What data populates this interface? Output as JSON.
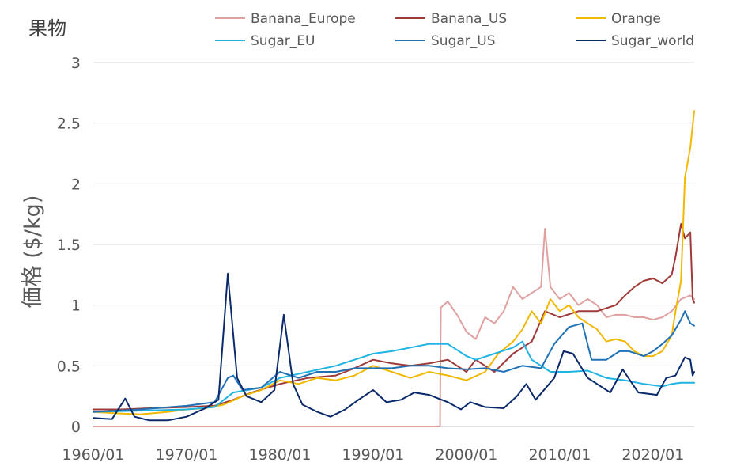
{
  "chart_data": {
    "type": "line",
    "title": "果物",
    "ylabel": "価格 ($/kg)",
    "xlabel": "",
    "ylim": [
      0,
      3
    ],
    "xlim": [
      "1960/01",
      "2024/06"
    ],
    "y_ticks": [
      "0",
      "0.5",
      "1",
      "1.5",
      "2",
      "2.5",
      "3"
    ],
    "x_ticks": [
      "1960/01",
      "1970/01",
      "1980/01",
      "1990/01",
      "2000/01",
      "2010/01",
      "2020/01"
    ],
    "grid": true,
    "legend_position": "top",
    "series": [
      {
        "name": "Banana_Europe",
        "color": "#E0A0A0",
        "points": [
          [
            "1960/01",
            0.0
          ],
          [
            "1997/03",
            0.0
          ],
          [
            "1997/04",
            0.98
          ],
          [
            "1998/01",
            1.03
          ],
          [
            "1999/01",
            0.92
          ],
          [
            "2000/01",
            0.78
          ],
          [
            "2001/01",
            0.72
          ],
          [
            "2002/01",
            0.9
          ],
          [
            "2003/01",
            0.85
          ],
          [
            "2004/01",
            0.95
          ],
          [
            "2005/01",
            1.15
          ],
          [
            "2006/01",
            1.05
          ],
          [
            "2007/01",
            1.1
          ],
          [
            "2008/01",
            1.15
          ],
          [
            "2008/06",
            1.63
          ],
          [
            "2009/01",
            1.15
          ],
          [
            "2010/01",
            1.05
          ],
          [
            "2011/01",
            1.1
          ],
          [
            "2012/01",
            1.0
          ],
          [
            "2013/01",
            1.05
          ],
          [
            "2014/01",
            1.0
          ],
          [
            "2015/01",
            0.9
          ],
          [
            "2016/01",
            0.92
          ],
          [
            "2017/01",
            0.92
          ],
          [
            "2018/01",
            0.9
          ],
          [
            "2019/01",
            0.9
          ],
          [
            "2020/01",
            0.88
          ],
          [
            "2021/01",
            0.9
          ],
          [
            "2022/01",
            0.95
          ],
          [
            "2023/01",
            1.05
          ],
          [
            "2024/01",
            1.08
          ],
          [
            "2024/06",
            1.05
          ]
        ]
      },
      {
        "name": "Banana_US",
        "color": "#9E3A38",
        "points": [
          [
            "1960/01",
            0.14
          ],
          [
            "1963/01",
            0.14
          ],
          [
            "1966/01",
            0.15
          ],
          [
            "1970/01",
            0.16
          ],
          [
            "1973/01",
            0.17
          ],
          [
            "1975/01",
            0.22
          ],
          [
            "1977/01",
            0.28
          ],
          [
            "1980/01",
            0.35
          ],
          [
            "1983/01",
            0.4
          ],
          [
            "1986/01",
            0.42
          ],
          [
            "1988/01",
            0.48
          ],
          [
            "1990/01",
            0.55
          ],
          [
            "1992/01",
            0.52
          ],
          [
            "1994/01",
            0.5
          ],
          [
            "1996/01",
            0.52
          ],
          [
            "1998/01",
            0.55
          ],
          [
            "2000/01",
            0.45
          ],
          [
            "2001/01",
            0.55
          ],
          [
            "2003/01",
            0.45
          ],
          [
            "2005/01",
            0.6
          ],
          [
            "2007/01",
            0.7
          ],
          [
            "2008/06",
            0.95
          ],
          [
            "2010/01",
            0.9
          ],
          [
            "2012/01",
            0.95
          ],
          [
            "2014/01",
            0.95
          ],
          [
            "2016/01",
            1.0
          ],
          [
            "2017/01",
            1.08
          ],
          [
            "2018/01",
            1.15
          ],
          [
            "2019/01",
            1.2
          ],
          [
            "2020/01",
            1.22
          ],
          [
            "2021/01",
            1.18
          ],
          [
            "2022/01",
            1.25
          ],
          [
            "2022/06",
            1.4
          ],
          [
            "2023/01",
            1.67
          ],
          [
            "2023/06",
            1.55
          ],
          [
            "2024/01",
            1.6
          ],
          [
            "2024/04",
            1.05
          ],
          [
            "2024/06",
            1.02
          ]
        ]
      },
      {
        "name": "Orange",
        "color": "#F2B800",
        "points": [
          [
            "1960/01",
            0.12
          ],
          [
            "1962/01",
            0.11
          ],
          [
            "1965/01",
            0.1
          ],
          [
            "1968/01",
            0.12
          ],
          [
            "1970/01",
            0.14
          ],
          [
            "1972/01",
            0.15
          ],
          [
            "1974/01",
            0.18
          ],
          [
            "1976/01",
            0.25
          ],
          [
            "1978/01",
            0.3
          ],
          [
            "1980/01",
            0.38
          ],
          [
            "1982/01",
            0.35
          ],
          [
            "1984/01",
            0.4
          ],
          [
            "1986/01",
            0.38
          ],
          [
            "1988/01",
            0.42
          ],
          [
            "1990/01",
            0.5
          ],
          [
            "1992/01",
            0.45
          ],
          [
            "1994/01",
            0.4
          ],
          [
            "1996/01",
            0.45
          ],
          [
            "1998/01",
            0.42
          ],
          [
            "2000/01",
            0.38
          ],
          [
            "2002/01",
            0.45
          ],
          [
            "2003/06",
            0.6
          ],
          [
            "2005/01",
            0.7
          ],
          [
            "2006/01",
            0.8
          ],
          [
            "2007/01",
            0.95
          ],
          [
            "2008/01",
            0.85
          ],
          [
            "2009/01",
            1.05
          ],
          [
            "2010/01",
            0.95
          ],
          [
            "2011/01",
            1.0
          ],
          [
            "2012/01",
            0.9
          ],
          [
            "2013/01",
            0.85
          ],
          [
            "2014/01",
            0.8
          ],
          [
            "2015/01",
            0.7
          ],
          [
            "2016/01",
            0.72
          ],
          [
            "2017/01",
            0.7
          ],
          [
            "2018/01",
            0.62
          ],
          [
            "2019/01",
            0.58
          ],
          [
            "2020/01",
            0.58
          ],
          [
            "2021/01",
            0.62
          ],
          [
            "2022/01",
            0.75
          ],
          [
            "2022/06",
            0.95
          ],
          [
            "2023/01",
            1.2
          ],
          [
            "2023/06",
            2.05
          ],
          [
            "2024/01",
            2.3
          ],
          [
            "2024/06",
            2.6
          ]
        ]
      },
      {
        "name": "Sugar_EU",
        "color": "#1FB4E3",
        "points": [
          [
            "1960/01",
            0.12
          ],
          [
            "1965/01",
            0.13
          ],
          [
            "1970/01",
            0.14
          ],
          [
            "1973/01",
            0.16
          ],
          [
            "1975/01",
            0.28
          ],
          [
            "1978/01",
            0.32
          ],
          [
            "1980/01",
            0.4
          ],
          [
            "1983/01",
            0.45
          ],
          [
            "1986/01",
            0.5
          ],
          [
            "1988/01",
            0.55
          ],
          [
            "1990/01",
            0.6
          ],
          [
            "1992/01",
            0.62
          ],
          [
            "1994/01",
            0.65
          ],
          [
            "1996/01",
            0.68
          ],
          [
            "1998/01",
            0.68
          ],
          [
            "2000/01",
            0.58
          ],
          [
            "2001/01",
            0.55
          ],
          [
            "2003/01",
            0.6
          ],
          [
            "2005/01",
            0.65
          ],
          [
            "2006/01",
            0.7
          ],
          [
            "2007/01",
            0.55
          ],
          [
            "2009/01",
            0.45
          ],
          [
            "2011/01",
            0.45
          ],
          [
            "2013/01",
            0.46
          ],
          [
            "2015/01",
            0.4
          ],
          [
            "2017/01",
            0.38
          ],
          [
            "2019/01",
            0.35
          ],
          [
            "2021/01",
            0.33
          ],
          [
            "2022/01",
            0.35
          ],
          [
            "2023/01",
            0.36
          ],
          [
            "2024/06",
            0.36
          ]
        ]
      },
      {
        "name": "Sugar_US",
        "color": "#2171B5",
        "points": [
          [
            "1960/01",
            0.12
          ],
          [
            "1965/01",
            0.14
          ],
          [
            "1970/01",
            0.17
          ],
          [
            "1973/01",
            0.2
          ],
          [
            "1974/06",
            0.4
          ],
          [
            "1975/01",
            0.42
          ],
          [
            "1976/01",
            0.3
          ],
          [
            "1978/01",
            0.32
          ],
          [
            "1980/01",
            0.45
          ],
          [
            "1982/01",
            0.4
          ],
          [
            "1984/01",
            0.45
          ],
          [
            "1986/01",
            0.45
          ],
          [
            "1988/01",
            0.48
          ],
          [
            "1990/01",
            0.48
          ],
          [
            "1992/01",
            0.48
          ],
          [
            "1994/01",
            0.5
          ],
          [
            "1996/01",
            0.5
          ],
          [
            "1998/01",
            0.48
          ],
          [
            "2000/01",
            0.47
          ],
          [
            "2002/01",
            0.48
          ],
          [
            "2004/01",
            0.45
          ],
          [
            "2006/01",
            0.5
          ],
          [
            "2008/01",
            0.48
          ],
          [
            "2009/06",
            0.68
          ],
          [
            "2011/01",
            0.82
          ],
          [
            "2012/06",
            0.85
          ],
          [
            "2013/06",
            0.55
          ],
          [
            "2015/01",
            0.55
          ],
          [
            "2016/06",
            0.62
          ],
          [
            "2017/06",
            0.62
          ],
          [
            "2019/01",
            0.58
          ],
          [
            "2020/01",
            0.62
          ],
          [
            "2021/01",
            0.68
          ],
          [
            "2022/01",
            0.75
          ],
          [
            "2023/01",
            0.88
          ],
          [
            "2023/06",
            0.95
          ],
          [
            "2024/01",
            0.85
          ],
          [
            "2024/06",
            0.83
          ]
        ]
      },
      {
        "name": "Sugar_world",
        "color": "#0B2A6B",
        "points": [
          [
            "1960/01",
            0.07
          ],
          [
            "1962/01",
            0.06
          ],
          [
            "1963/06",
            0.23
          ],
          [
            "1964/06",
            0.08
          ],
          [
            "1966/01",
            0.05
          ],
          [
            "1968/01",
            0.05
          ],
          [
            "1970/01",
            0.08
          ],
          [
            "1972/01",
            0.15
          ],
          [
            "1973/06",
            0.22
          ],
          [
            "1974/06",
            1.26
          ],
          [
            "1975/06",
            0.4
          ],
          [
            "1976/06",
            0.25
          ],
          [
            "1978/01",
            0.2
          ],
          [
            "1979/06",
            0.3
          ],
          [
            "1980/06",
            0.92
          ],
          [
            "1981/06",
            0.35
          ],
          [
            "1982/06",
            0.18
          ],
          [
            "1984/01",
            0.12
          ],
          [
            "1985/06",
            0.08
          ],
          [
            "1987/01",
            0.14
          ],
          [
            "1988/06",
            0.22
          ],
          [
            "1990/01",
            0.3
          ],
          [
            "1991/06",
            0.2
          ],
          [
            "1993/01",
            0.22
          ],
          [
            "1994/06",
            0.28
          ],
          [
            "1996/01",
            0.26
          ],
          [
            "1998/01",
            0.2
          ],
          [
            "1999/06",
            0.14
          ],
          [
            "2000/06",
            0.2
          ],
          [
            "2002/01",
            0.16
          ],
          [
            "2004/01",
            0.15
          ],
          [
            "2005/06",
            0.25
          ],
          [
            "2006/06",
            0.35
          ],
          [
            "2007/06",
            0.22
          ],
          [
            "2009/06",
            0.4
          ],
          [
            "2010/06",
            0.62
          ],
          [
            "2011/06",
            0.6
          ],
          [
            "2013/01",
            0.4
          ],
          [
            "2015/06",
            0.28
          ],
          [
            "2016/10",
            0.47
          ],
          [
            "2018/06",
            0.28
          ],
          [
            "2020/06",
            0.26
          ],
          [
            "2021/06",
            0.4
          ],
          [
            "2022/06",
            0.42
          ],
          [
            "2023/06",
            0.57
          ],
          [
            "2024/01",
            0.55
          ],
          [
            "2024/04",
            0.42
          ],
          [
            "2024/06",
            0.45
          ]
        ]
      }
    ]
  }
}
